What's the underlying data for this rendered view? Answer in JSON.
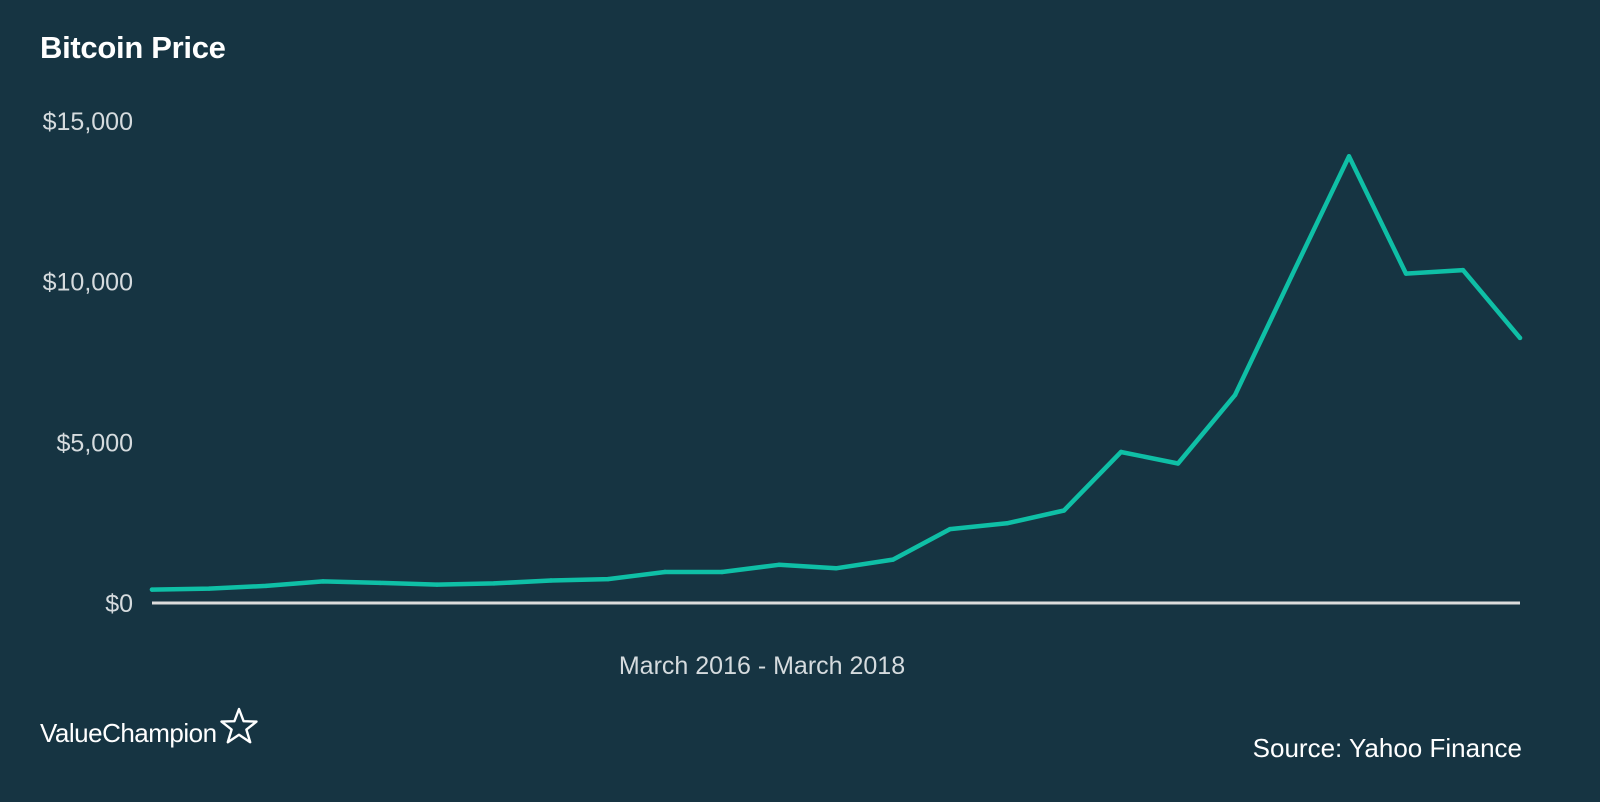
{
  "brand": {
    "logo_text": "ValueChampion",
    "logo_icon": "star-outline-icon"
  },
  "source": "Source: Yahoo Finance",
  "colors": {
    "background": "#163442",
    "line": "#0fbfa6",
    "axis": "#dcdcdc",
    "tick_text": "#d5dbde"
  },
  "chart_data": {
    "type": "line",
    "title": "Bitcoin Price",
    "xlabel": "March 2016 - March 2018",
    "ylabel": "",
    "ylim": [
      0,
      15000
    ],
    "yticks": [
      0,
      5000,
      10000,
      15000
    ],
    "ytick_labels": [
      "$0",
      "$5,000",
      "$10,000",
      "$15,000"
    ],
    "grid": false,
    "legend": "none",
    "series": [
      {
        "x": [
          "2016-03",
          "2016-04",
          "2016-05",
          "2016-06",
          "2016-07",
          "2016-08",
          "2016-09",
          "2016-10",
          "2016-11",
          "2016-12",
          "2017-01",
          "2017-02",
          "2017-03",
          "2017-04",
          "2017-05",
          "2017-06",
          "2017-07",
          "2017-08",
          "2017-09",
          "2017-10",
          "2017-11",
          "2017-12",
          "2018-01",
          "2018-02",
          "2018-03"
        ],
        "values": [
          416,
          448,
          531,
          673,
          624,
          574,
          610,
          700,
          745,
          964,
          965,
          1190,
          1080,
          1350,
          2300,
          2480,
          2880,
          4700,
          4340,
          6470,
          10200,
          13900,
          10250,
          10360,
          8250
        ]
      }
    ]
  }
}
